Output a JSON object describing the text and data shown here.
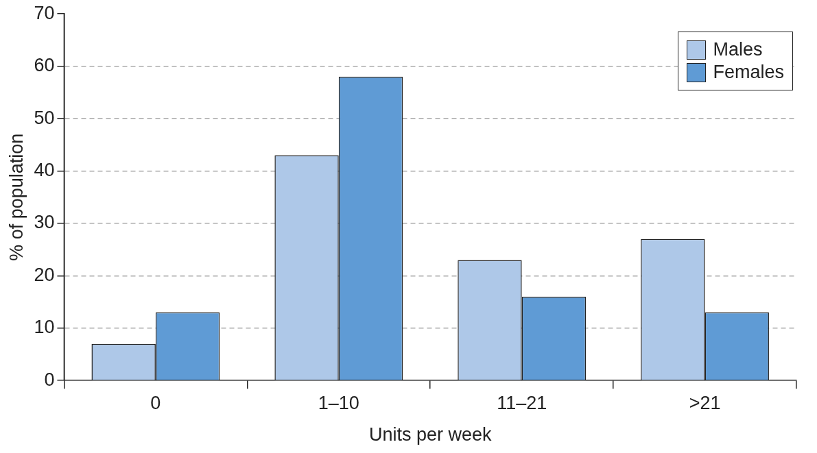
{
  "chart_data": {
    "type": "bar",
    "xlabel": "Units per week",
    "ylabel": "% of population",
    "categories": [
      "0",
      "1–10",
      "11–21",
      ">21"
    ],
    "series": [
      {
        "name": "Males",
        "color": "#aec8e8",
        "values": [
          7,
          43,
          23,
          27
        ]
      },
      {
        "name": "Females",
        "color": "#5f9bd5",
        "values": [
          13,
          58,
          16,
          13
        ]
      }
    ],
    "ylim": [
      0,
      70
    ],
    "yticks": [
      0,
      10,
      20,
      30,
      40,
      50,
      60,
      70
    ],
    "grid": "y",
    "legend": "top right"
  }
}
